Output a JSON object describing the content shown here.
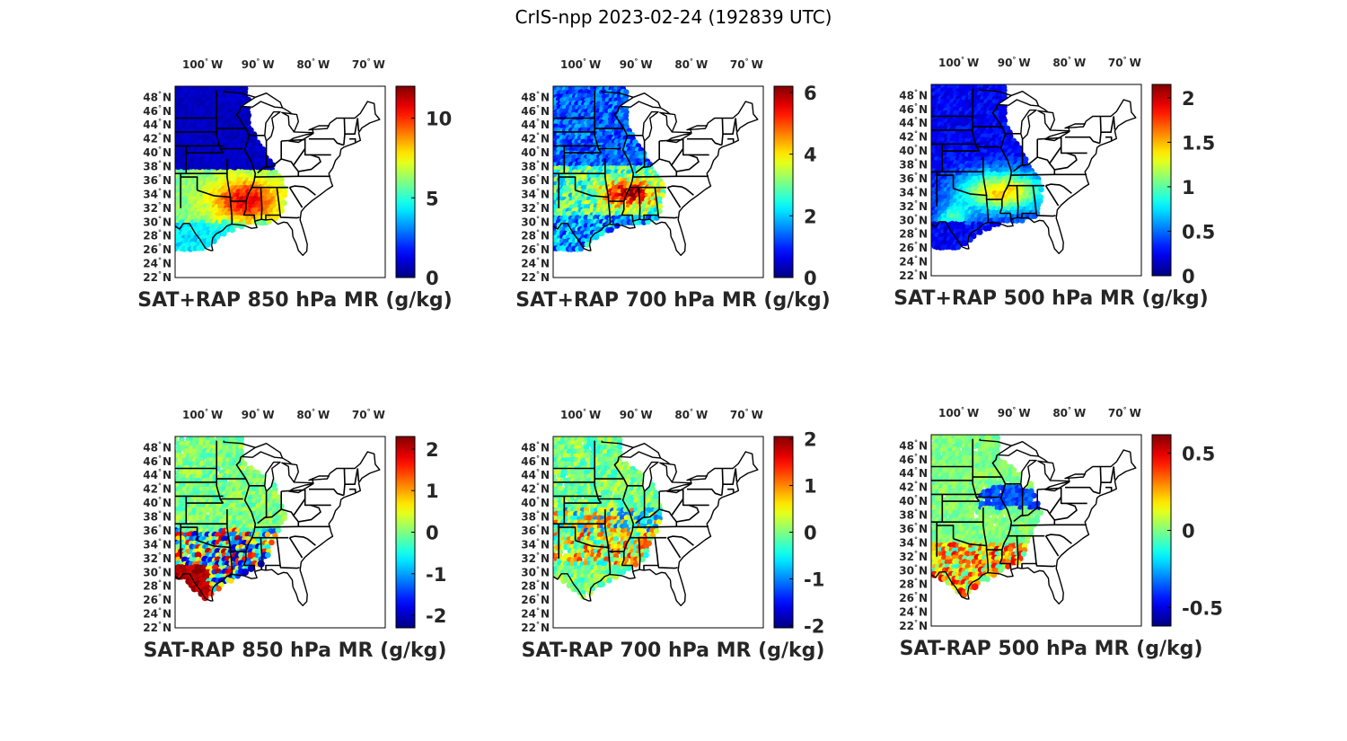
{
  "figure": {
    "title": "CrIS-npp 2023-02-24 (192839 UTC)"
  },
  "axes": {
    "lon_ticks": [
      "100",
      "90",
      "80",
      "70"
    ],
    "lon_suffix": "W",
    "lat_ticks": [
      "48",
      "46",
      "44",
      "42",
      "40",
      "38",
      "36",
      "34",
      "32",
      "30",
      "28",
      "26",
      "24",
      "22"
    ],
    "lat_suffix": "N",
    "degree_symbol": "°"
  },
  "colormap": "jet",
  "panels": [
    {
      "id": "sat-rap-sum-850",
      "title": "SAT+RAP 850 hPa MR (g/kg)",
      "colorbar": {
        "min": 0,
        "max": 12,
        "ticks": [
          "0",
          "5",
          "10"
        ]
      }
    },
    {
      "id": "sat-rap-sum-700",
      "title": "SAT+RAP 700 hPa MR (g/kg)",
      "colorbar": {
        "min": 0,
        "max": 6.2,
        "ticks": [
          "0",
          "2",
          "4",
          "6"
        ]
      }
    },
    {
      "id": "sat-rap-sum-500",
      "title": "SAT+RAP 500 hPa MR (g/kg)",
      "colorbar": {
        "min": 0,
        "max": 2.15,
        "ticks": [
          "0",
          "0.5",
          "1",
          "1.5",
          "2"
        ]
      }
    },
    {
      "id": "sat-rap-diff-850",
      "title": "SAT-RAP 850 hPa MR (g/kg)",
      "colorbar": {
        "min": -2.3,
        "max": 2.3,
        "ticks": [
          "-2",
          "-1",
          "0",
          "1",
          "2"
        ]
      }
    },
    {
      "id": "sat-rap-diff-700",
      "title": "SAT-RAP 700 hPa MR (g/kg)",
      "colorbar": {
        "min": -2.05,
        "max": 2.05,
        "ticks": [
          "-2",
          "-1",
          "0",
          "1",
          "2"
        ]
      }
    },
    {
      "id": "sat-rap-diff-500",
      "title": "SAT-RAP 500 hPa MR (g/kg)",
      "colorbar": {
        "min": -0.62,
        "max": 0.62,
        "ticks": [
          "-0.5",
          "0",
          "0.5"
        ]
      }
    }
  ]
}
